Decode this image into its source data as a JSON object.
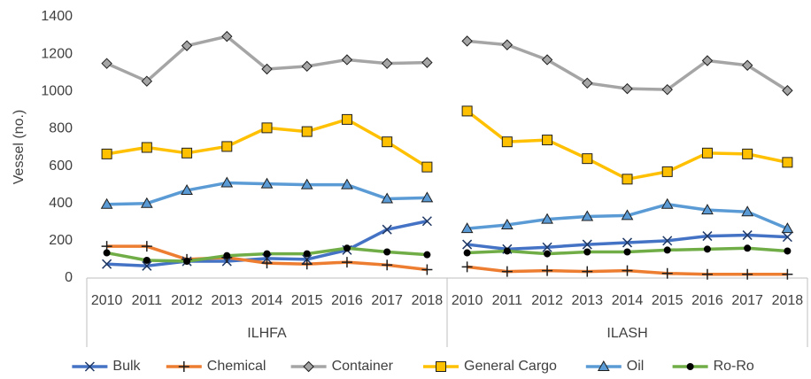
{
  "chart_data": {
    "type": "line",
    "y_label": "Vessel (no.)",
    "groups": [
      "ILHFA",
      "ILASH"
    ],
    "categories": [
      "2010",
      "2011",
      "2012",
      "2013",
      "2014",
      "2015",
      "2016",
      "2017",
      "2018",
      "2010",
      "2011",
      "2012",
      "2013",
      "2014",
      "2015",
      "2016",
      "2017",
      "2018"
    ],
    "ylim": [
      0,
      1400
    ],
    "yticks": [
      0,
      200,
      400,
      600,
      800,
      1000,
      1200,
      1400
    ],
    "grid": false,
    "legend": "bottom",
    "series": [
      {
        "name": "Bulk",
        "color": "#4472c4",
        "marker": "x",
        "values": [
          75,
          65,
          90,
          90,
          105,
          100,
          150,
          260,
          305,
          180,
          155,
          165,
          180,
          190,
          200,
          225,
          230,
          220
        ]
      },
      {
        "name": "Chemical",
        "color": "#ed7d31",
        "marker": "plus",
        "values": [
          170,
          170,
          100,
          110,
          80,
          75,
          85,
          70,
          45,
          60,
          35,
          40,
          35,
          40,
          25,
          20,
          20,
          20
        ]
      },
      {
        "name": "Container",
        "color": "#a5a5a5",
        "marker": "diamond",
        "values": [
          1150,
          1055,
          1245,
          1295,
          1120,
          1135,
          1170,
          1150,
          1155,
          1270,
          1250,
          1170,
          1045,
          1015,
          1010,
          1165,
          1140,
          1005
        ]
      },
      {
        "name": "General Cargo",
        "color": "#ffc000",
        "marker": "square",
        "values": [
          665,
          700,
          670,
          705,
          805,
          785,
          850,
          730,
          595,
          895,
          730,
          740,
          640,
          530,
          570,
          670,
          665,
          620
        ]
      },
      {
        "name": "Oil",
        "color": "#5b9bd5",
        "marker": "triangle",
        "values": [
          395,
          400,
          470,
          510,
          505,
          500,
          500,
          425,
          430,
          265,
          285,
          315,
          330,
          335,
          395,
          365,
          355,
          265
        ]
      },
      {
        "name": "Ro-Ro",
        "color": "#70ad47",
        "marker": "circle",
        "values": [
          135,
          95,
          90,
          120,
          130,
          130,
          160,
          140,
          125,
          135,
          145,
          130,
          140,
          140,
          150,
          155,
          160,
          145
        ]
      }
    ]
  }
}
